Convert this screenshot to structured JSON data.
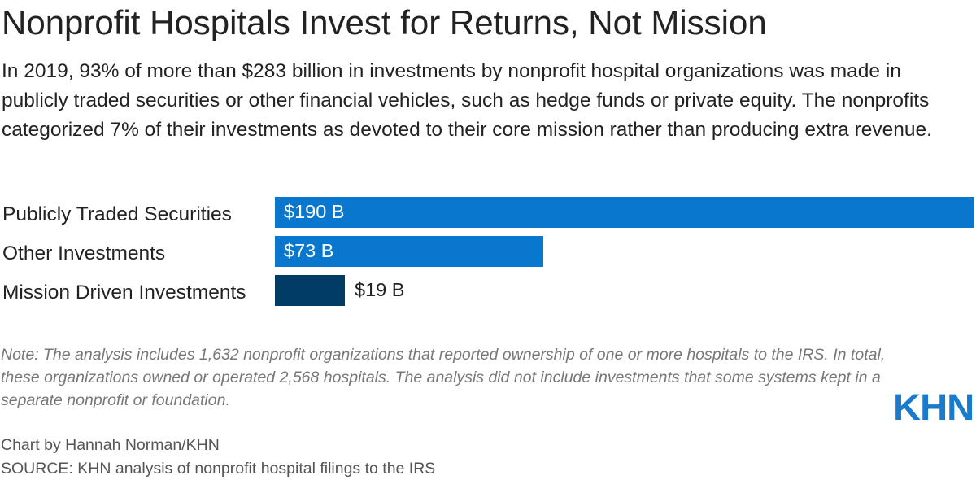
{
  "title": "Nonprofit Hospitals Invest for Returns, Not Mission",
  "subtitle": "In 2019, 93% of more than $283 billion in investments by nonprofit hospital organizations was made in publicly traded securities or other financial vehicles, such as hedge funds or private equity. The nonprofits categorized 7% of their investments as devoted to their core mission rather than producing extra revenue.",
  "chart_data": {
    "type": "bar",
    "orientation": "horizontal",
    "title": "Nonprofit Hospitals Invest for Returns, Not Mission",
    "categories": [
      "Publicly Traded Securities",
      "Other Investments",
      "Mission Driven Investments"
    ],
    "values": [
      190,
      73,
      19
    ],
    "value_labels": [
      "$190 B",
      "$73 B",
      "$19 B"
    ],
    "units": "billions of dollars",
    "colors": [
      "#0a77cf",
      "#0a77cf",
      "#003c66"
    ],
    "xlim": [
      0,
      190
    ],
    "xlabel": "",
    "ylabel": ""
  },
  "note": "Note: The analysis includes 1,632 nonprofit organizations that reported ownership of one or more hospitals to the IRS. In total, these organizations owned or operated 2,568 hospitals. The analysis did not include investments that some systems kept in a separate nonprofit or foundation.",
  "credit": "Chart by Hannah Norman/KHN",
  "source": "SOURCE: KHN analysis of nonprofit hospital filings to the IRS",
  "logo_text": "KHN",
  "accent_color": "#0a77cf"
}
